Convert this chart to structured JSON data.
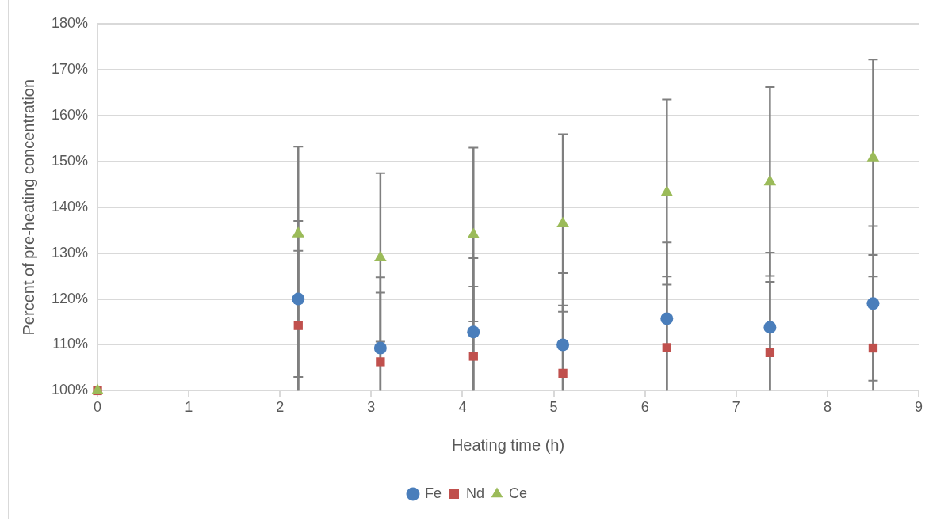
{
  "chart_data": {
    "type": "scatter",
    "xlabel": "Heating time (h)",
    "ylabel": "Percent of pre-heating concentration",
    "x": [
      0,
      2.2,
      3.1,
      4.12,
      5.1,
      6.24,
      7.37,
      8.5
    ],
    "series": [
      {
        "name": "Fe",
        "color": "#4a7ebb",
        "marker": "circle",
        "values": [
          null,
          120,
          109.3,
          112.8,
          110,
          115.7,
          113.8,
          119
        ],
        "errors": [
          null,
          [
            103,
            137
          ],
          [
            100,
            121.4
          ],
          [
            100,
            128.9
          ],
          [
            100,
            125.6
          ],
          [
            100,
            132.3
          ],
          [
            100,
            130.1
          ],
          [
            102.2,
            135.9
          ]
        ]
      },
      {
        "name": "Nd",
        "color": "#c0504d",
        "marker": "square",
        "values": [
          100,
          114.2,
          106.3,
          107.5,
          103.8,
          109.4,
          108.3,
          109.3
        ],
        "errors": [
          null,
          [
            100,
            130.5
          ],
          [
            100,
            124.7
          ],
          [
            100,
            122.7
          ],
          [
            100,
            118.6
          ],
          [
            100,
            124.9
          ],
          [
            100,
            123.7
          ],
          [
            100,
            124.9
          ]
        ]
      },
      {
        "name": "Ce",
        "color": "#9bbb59",
        "marker": "triangle",
        "values": [
          100,
          134.2,
          129,
          134,
          136.4,
          143.2,
          145.5,
          150.8
        ],
        "errors": [
          null,
          [
            100,
            153.2
          ],
          [
            110.7,
            147.4
          ],
          [
            115.1,
            153
          ],
          [
            117.2,
            155.9
          ],
          [
            123.1,
            163.5
          ],
          [
            125,
            166.2
          ],
          [
            129.6,
            172.2
          ]
        ]
      }
    ],
    "xlim": [
      0,
      9
    ],
    "xticks": [
      0,
      1,
      2,
      3,
      4,
      5,
      6,
      7,
      8,
      9
    ],
    "ylim": [
      100,
      180
    ],
    "yticks": [
      {
        "value": 100,
        "label": "100%"
      },
      {
        "value": 110,
        "label": "110%"
      },
      {
        "value": 120,
        "label": "120%"
      },
      {
        "value": 130,
        "label": "130%"
      },
      {
        "value": 140,
        "label": "140%"
      },
      {
        "value": 150,
        "label": "150%"
      },
      {
        "value": 160,
        "label": "160%"
      },
      {
        "value": 170,
        "label": "170%"
      },
      {
        "value": 180,
        "label": "180%"
      }
    ],
    "grid": "y",
    "legend": "bottom"
  }
}
